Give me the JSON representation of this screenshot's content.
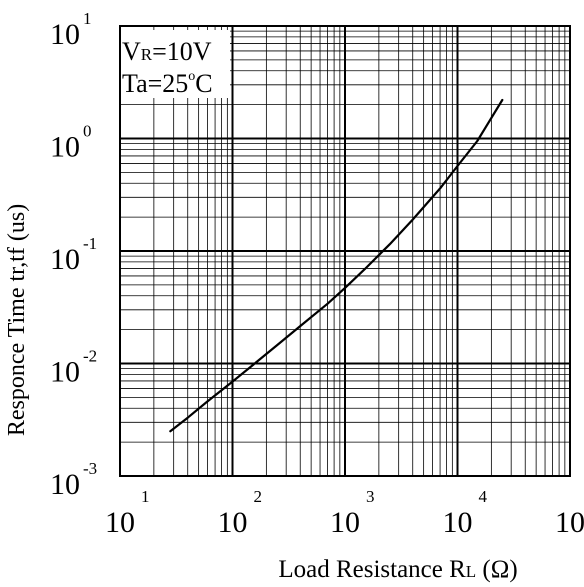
{
  "chart_data": {
    "type": "line",
    "x_scale": "log",
    "y_scale": "log",
    "xlim": [
      10,
      100000
    ],
    "ylim": [
      0.001,
      10
    ],
    "grid": true,
    "xlabel": "Load Resistance R",
    "xlabel_sub": "L",
    "xlabel_unit_open": " (",
    "xlabel_unit": "Ω",
    "xlabel_unit_close": ")",
    "ylabel": "Responce Time tr,tf (us)",
    "x_ticks": [
      {
        "base": "10",
        "exp": "1"
      },
      {
        "base": "10",
        "exp": "2"
      },
      {
        "base": "10",
        "exp": "3"
      },
      {
        "base": "10",
        "exp": "4"
      },
      {
        "base": "10",
        "exp": ""
      }
    ],
    "y_ticks": [
      {
        "base": "10",
        "exp": "-3"
      },
      {
        "base": "10",
        "exp": "-2"
      },
      {
        "base": "10",
        "exp": "-1"
      },
      {
        "base": "10",
        "exp": "0"
      },
      {
        "base": "10",
        "exp": "1"
      }
    ],
    "annotation": {
      "line1_main": "V",
      "line1_sub": "R",
      "line1_rest": "=10V",
      "line2_main": "Ta=25",
      "line2_sup": "o",
      "line2_rest": "C"
    },
    "series": [
      {
        "color": "#000000",
        "x": [
          28,
          40,
          60,
          100,
          150,
          250,
          400,
          700,
          1000,
          1500,
          2500,
          4000,
          7000,
          10000,
          15000,
          25000
        ],
        "y": [
          0.0025,
          0.0033,
          0.0046,
          0.0069,
          0.0096,
          0.0146,
          0.0215,
          0.034,
          0.047,
          0.069,
          0.115,
          0.19,
          0.36,
          0.57,
          0.95,
          2.2
        ]
      }
    ]
  }
}
